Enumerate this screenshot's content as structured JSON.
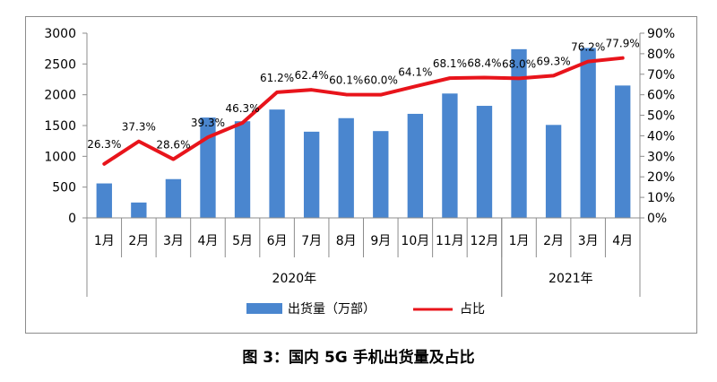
{
  "caption": "图 3：国内 5G 手机出货量及占比",
  "chart_data": {
    "type": "bar",
    "categories": [
      "1月",
      "2月",
      "3月",
      "4月",
      "5月",
      "6月",
      "7月",
      "8月",
      "9月",
      "10月",
      "11月",
      "12月",
      "1月",
      "2月",
      "3月",
      "4月"
    ],
    "year_groups": [
      {
        "label": "2020年",
        "count": 12
      },
      {
        "label": "2021年",
        "count": 4
      }
    ],
    "series": [
      {
        "name": "出货量（万部）",
        "type": "bar",
        "axis": "left",
        "color": "#4a86cf",
        "values": [
          560,
          250,
          630,
          1630,
          1570,
          1760,
          1400,
          1620,
          1410,
          1690,
          2020,
          1820,
          2740,
          1510,
          2760,
          2150
        ]
      },
      {
        "name": "占比",
        "type": "line",
        "axis": "right",
        "color": "#e8141b",
        "values": [
          26.3,
          37.3,
          28.6,
          39.3,
          46.3,
          61.2,
          62.4,
          60.1,
          60.0,
          64.1,
          68.1,
          68.4,
          68.0,
          69.3,
          76.2,
          77.9
        ],
        "labels": [
          "26.3%",
          "37.3%",
          "28.6%",
          "39.3%",
          "46.3%",
          "61.2%",
          "62.4%",
          "60.1%",
          "60.0%",
          "64.1%",
          "68.1%",
          "68.4%",
          "68.0%",
          "69.3%",
          "76.2%",
          "77.9%"
        ]
      }
    ],
    "y_left": {
      "ylim": [
        0,
        3000
      ],
      "ticks": [
        "0",
        "500",
        "1000",
        "1500",
        "2000",
        "2500",
        "3000"
      ]
    },
    "y_right": {
      "ylim": [
        0,
        90
      ],
      "ticks": [
        "0%",
        "10%",
        "20%",
        "30%",
        "40%",
        "50%",
        "60%",
        "70%",
        "80%",
        "90%"
      ]
    },
    "legend_position": "bottom",
    "grid": false
  }
}
